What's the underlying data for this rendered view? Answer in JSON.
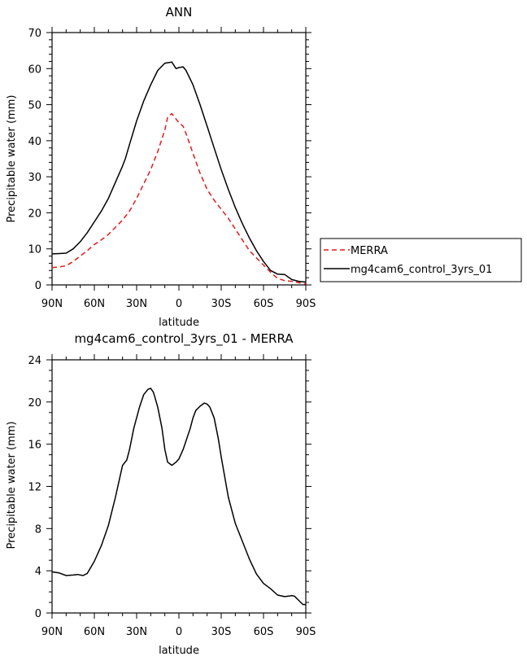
{
  "chart_data": [
    {
      "type": "line",
      "title": "ANN",
      "xlabel": "latitude",
      "ylabel": "Precipitable water (mm)",
      "xlim": [
        90,
        -90
      ],
      "ylim": [
        0,
        70
      ],
      "xticks": [
        90,
        60,
        30,
        0,
        -30,
        -60,
        -90
      ],
      "xtick_labels": [
        "90N",
        "60N",
        "30N",
        "0",
        "30S",
        "60S",
        "90S"
      ],
      "yticks": [
        0,
        10,
        20,
        30,
        40,
        50,
        60,
        70
      ],
      "ytick_labels": [
        "0",
        "10",
        "20",
        "30",
        "40",
        "50",
        "60",
        "70"
      ],
      "legend_position": "right",
      "series": [
        {
          "name": "MERRA",
          "color": "#e41a1c",
          "style": "dashed",
          "x": [
            90,
            85,
            80,
            75,
            70,
            65,
            60,
            55,
            50,
            45,
            40,
            35,
            30,
            25,
            20,
            15,
            10,
            8,
            5,
            2,
            0,
            -3,
            -5,
            -10,
            -15,
            -20,
            -25,
            -30,
            -35,
            -40,
            -45,
            -50,
            -55,
            -60,
            -65,
            -70,
            -75,
            -80,
            -85,
            -90
          ],
          "y": [
            4.8,
            5,
            5.3,
            6.5,
            8,
            9.5,
            11.2,
            12.5,
            14,
            16,
            18,
            20.5,
            24,
            28,
            32,
            37,
            43,
            46.5,
            47.5,
            46,
            45,
            44,
            42,
            36.5,
            31,
            26.5,
            23.5,
            21,
            18.5,
            15.5,
            12.5,
            9.5,
            7.5,
            5.5,
            3.5,
            1.8,
            1.2,
            1,
            0.6,
            0.3
          ]
        },
        {
          "name": "mg4cam6_control_3yrs_01",
          "color": "#000000",
          "style": "solid",
          "x": [
            90,
            85,
            80,
            75,
            70,
            65,
            60,
            55,
            50,
            45,
            40,
            38,
            35,
            30,
            25,
            20,
            15,
            10,
            5,
            2,
            0,
            -3,
            -5,
            -10,
            -15,
            -20,
            -25,
            -30,
            -35,
            -40,
            -45,
            -50,
            -55,
            -60,
            -65,
            -70,
            -75,
            -80,
            -85,
            -90
          ],
          "y": [
            8.6,
            8.7,
            8.8,
            10,
            12,
            14.5,
            17.5,
            20.5,
            24,
            28.5,
            33,
            35,
            39,
            45.5,
            51,
            55.5,
            59.5,
            61.5,
            61.8,
            60,
            60.3,
            60.5,
            59.5,
            55.5,
            50,
            44,
            38,
            32,
            26.5,
            21.5,
            17,
            13,
            9.5,
            6.5,
            4,
            3,
            2.9,
            1.5,
            1,
            0.8
          ]
        }
      ]
    },
    {
      "type": "line",
      "title": "mg4cam6_control_3yrs_01 - MERRA",
      "xlabel": "latitude",
      "ylabel": "Precipitable water (mm)",
      "xlim": [
        90,
        -90
      ],
      "ylim": [
        0,
        24
      ],
      "xticks": [
        90,
        60,
        30,
        0,
        -30,
        -60,
        -90
      ],
      "xtick_labels": [
        "90N",
        "60N",
        "30N",
        "0",
        "30S",
        "60S",
        "90S"
      ],
      "yticks": [
        0,
        4,
        8,
        12,
        16,
        20,
        24
      ],
      "ytick_labels": [
        "0",
        "4",
        "8",
        "12",
        "16",
        "20",
        "24"
      ],
      "series": [
        {
          "color": "#000000",
          "style": "solid",
          "x": [
            90,
            85,
            80,
            75,
            72,
            68,
            65,
            60,
            55,
            50,
            45,
            40,
            37,
            35,
            32,
            28,
            25,
            22,
            20,
            18,
            15,
            12,
            10,
            8,
            5,
            2,
            0,
            -3,
            -5,
            -8,
            -10,
            -12,
            -15,
            -18,
            -20,
            -22,
            -25,
            -28,
            -30,
            -35,
            -40,
            -45,
            -50,
            -55,
            -60,
            -65,
            -70,
            -75,
            -78,
            -80,
            -82,
            -85,
            -88,
            -90
          ],
          "y": [
            3.9,
            3.8,
            3.55,
            3.6,
            3.65,
            3.55,
            3.75,
            4.9,
            6.4,
            8.3,
            11,
            14,
            14.5,
            15.5,
            17.5,
            19.5,
            20.7,
            21.2,
            21.3,
            20.9,
            19.5,
            17.5,
            15.5,
            14.3,
            14,
            14.3,
            14.6,
            15.5,
            16.3,
            17.5,
            18.5,
            19.2,
            19.6,
            19.9,
            19.8,
            19.5,
            18.5,
            16.5,
            14.8,
            11,
            8.5,
            6.8,
            5.1,
            3.7,
            2.8,
            2.3,
            1.7,
            1.55,
            1.6,
            1.65,
            1.6,
            1.2,
            0.8,
            0.8
          ]
        }
      ]
    }
  ]
}
